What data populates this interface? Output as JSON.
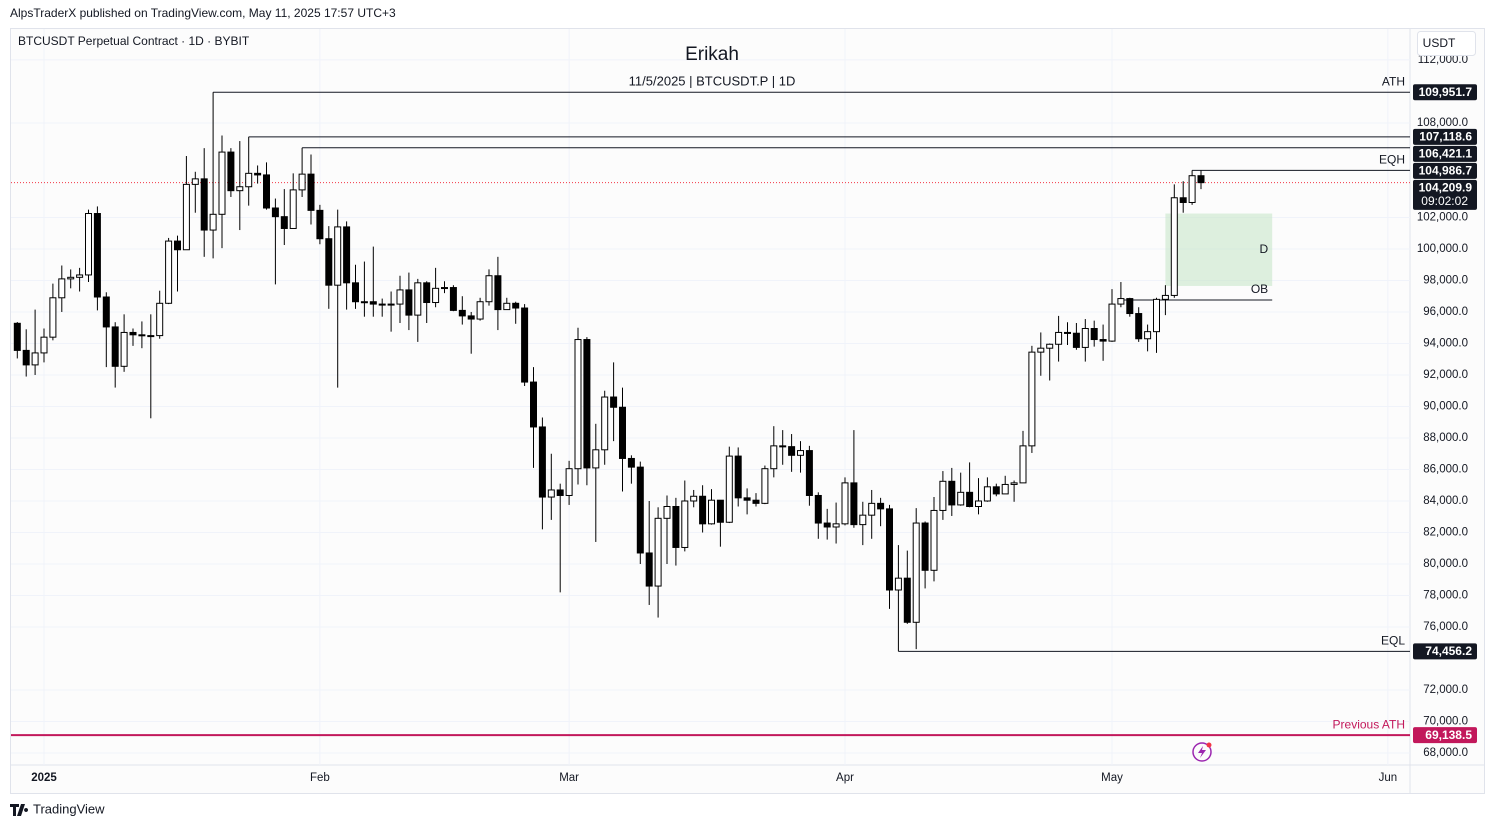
{
  "header": {
    "published": "AlpsTraderX published on TradingView.com, May 11, 2025 17:57 UTC+3",
    "symbol": "BTCUSDT Perpetual Contract · 1D · BYBIT",
    "currency": "USDT",
    "footer": "TradingView"
  },
  "chart_data": {
    "type": "candlestick",
    "title": "Erikah",
    "subtitle": "11/5/2025 | BTCUSDT.P | 1D",
    "categories": [
      null,
      null,
      null,
      "2025",
      null,
      null,
      null,
      null,
      null,
      null,
      null,
      null,
      null,
      null,
      null,
      null,
      null,
      null,
      null,
      null,
      null,
      null,
      null,
      null,
      null,
      null,
      null,
      null,
      null,
      null,
      null,
      null,
      null,
      null,
      "Feb",
      null,
      null,
      null,
      null,
      null,
      null,
      null,
      null,
      null,
      null,
      null,
      null,
      null,
      null,
      null,
      null,
      null,
      null,
      null,
      null,
      null,
      null,
      null,
      null,
      null,
      null,
      null,
      "Mar",
      null,
      null,
      null,
      null,
      null,
      null,
      null,
      null,
      null,
      null,
      null,
      null,
      null,
      null,
      null,
      null,
      null,
      null,
      null,
      null,
      null,
      null,
      null,
      null,
      null,
      null,
      null,
      null,
      null,
      null,
      "Apr",
      null,
      null,
      null,
      null,
      null,
      null,
      null,
      null,
      null,
      null,
      null,
      null,
      null,
      null,
      null,
      null,
      null,
      null,
      null,
      null,
      null,
      null,
      null,
      null,
      null,
      null,
      null,
      null,
      null,
      "May",
      null,
      null,
      null,
      null,
      null,
      null,
      null,
      null,
      null,
      null,
      null,
      null,
      null,
      null,
      null,
      null,
      null,
      null,
      null,
      null,
      null,
      null,
      null,
      null,
      null,
      null,
      null,
      null,
      null,
      null,
      "Jun",
      null
    ],
    "open": [
      95280,
      93560,
      92640,
      93400,
      94400,
      96900,
      98100,
      98200,
      98350,
      102250,
      96950,
      95050,
      92550,
      94700,
      94550,
      94500,
      94500,
      96550,
      100500,
      99950,
      104100,
      104450,
      101200,
      102200,
      106150,
      103700,
      103950,
      104800,
      104700,
      102600,
      102050,
      101300,
      103750,
      104750,
      102450,
      100650,
      97700,
      101400,
      97850,
      96650,
      96650,
      96500,
      96500,
      96500,
      97400,
      95800,
      97850,
      96600,
      97500,
      97550,
      96100,
      95750,
      95550,
      96650,
      98300,
      96150,
      96550,
      96250,
      91550,
      88700,
      84250,
      84700,
      84350,
      86050,
      94250,
      86100,
      87250,
      90600,
      89950,
      86700,
      86150,
      80700,
      78600,
      82900,
      83650,
      81050,
      84000,
      84300,
      82550,
      84050,
      82650,
      86850,
      84200,
      84050,
      83850,
      86050,
      87500,
      87450,
      86900,
      87200,
      84350,
      82600,
      82350,
      82550,
      85150,
      82500,
      83100,
      83850,
      83500,
      78350,
      79100,
      76300,
      82600,
      79600,
      83400,
      85250,
      83750,
      84550,
      83650,
      84000,
      84900,
      84450,
      85050,
      85150,
      87500,
      93450,
      93700,
      93950,
      94700,
      94650,
      93750,
      94950,
      94250,
      94150,
      96500,
      96850,
      95900,
      94300,
      94750,
      96800,
      97050,
      103250,
      102950,
      104650,
      null,
      null,
      null,
      null,
      null,
      null,
      null,
      null,
      null,
      null,
      null,
      null,
      null,
      null,
      null,
      null,
      null,
      null,
      null,
      null,
      null,
      null
    ],
    "high": [
      95360,
      94900,
      96150,
      94950,
      97800,
      98950,
      98700,
      98800,
      102500,
      102700,
      97250,
      95350,
      95850,
      94950,
      95400,
      95850,
      97350,
      100700,
      100850,
      105900,
      104900,
      106400,
      109951.7,
      107200,
      106400,
      106850,
      107118.6,
      105300,
      105500,
      103200,
      103800,
      104800,
      106421.1,
      106000,
      102800,
      101450,
      102500,
      101750,
      99000,
      99200,
      100150,
      96850,
      97300,
      98300,
      98500,
      98100,
      97950,
      98800,
      97950,
      97700,
      97000,
      96000,
      96900,
      98700,
      99500,
      96900,
      96650,
      96500,
      92500,
      89300,
      87000,
      85100,
      86550,
      95000,
      94400,
      88900,
      91000,
      92800,
      91200,
      86900,
      86500,
      84000,
      83600,
      84350,
      84200,
      85300,
      84700,
      85000,
      84750,
      84050,
      87450,
      87400,
      84800,
      84500,
      86250,
      88750,
      88500,
      88250,
      87800,
      87500,
      84550,
      83500,
      83900,
      85500,
      88500,
      83950,
      84700,
      84200,
      83750,
      81200,
      80850,
      83550,
      82700,
      84250,
      85900,
      86100,
      85800,
      86450,
      85450,
      85500,
      85100,
      85600,
      85300,
      88450,
      93850,
      94700,
      94000,
      95750,
      95350,
      95300,
      95550,
      95450,
      95200,
      97450,
      97900,
      96900,
      96300,
      95200,
      96900,
      97700,
      104100,
      104300,
      104986.7,
      104980,
      null,
      null,
      null,
      null,
      null,
      null,
      null,
      null,
      null,
      null,
      null,
      null,
      null,
      null,
      null,
      null,
      null,
      null,
      null,
      null,
      null,
      null
    ],
    "low": [
      93050,
      91900,
      92000,
      92800,
      94200,
      96000,
      97500,
      97300,
      97900,
      96100,
      92500,
      91200,
      92200,
      93850,
      93700,
      89250,
      94300,
      96500,
      97300,
      99950,
      102300,
      99500,
      99400,
      100050,
      103300,
      101200,
      102750,
      104150,
      102500,
      97750,
      100250,
      101300,
      103300,
      101550,
      100300,
      96200,
      91200,
      96150,
      96200,
      95700,
      95700,
      95700,
      94750,
      95300,
      94850,
      94100,
      95300,
      96300,
      97200,
      96050,
      95200,
      93350,
      95450,
      96400,
      94850,
      96150,
      95250,
      91300,
      86100,
      82200,
      82800,
      78200,
      83750,
      85050,
      85000,
      81400,
      86300,
      87800,
      84600,
      85100,
      80000,
      77400,
      76600,
      80000,
      79900,
      80800,
      83600,
      82000,
      82500,
      81100,
      82600,
      83650,
      83150,
      83650,
      83800,
      85500,
      86300,
      85850,
      85800,
      83700,
      81600,
      81550,
      81300,
      82450,
      82300,
      81200,
      81600,
      82400,
      77150,
      74456.2,
      76200,
      74600,
      78450,
      78900,
      82800,
      83050,
      83700,
      83600,
      83150,
      83950,
      84300,
      84450,
      83950,
      85150,
      87050,
      91950,
      91650,
      92850,
      93900,
      93600,
      92850,
      93800,
      92900,
      94100,
      96300,
      95700,
      94100,
      93500,
      93400,
      95800,
      96900,
      102300,
      102800,
      103800,
      null,
      null,
      null,
      null,
      null,
      null,
      null,
      null,
      null,
      null,
      null,
      null,
      null,
      null,
      null,
      null,
      null,
      null,
      null,
      null,
      null,
      null
    ],
    "close": [
      93560,
      92640,
      93400,
      94400,
      96900,
      98100,
      98200,
      98350,
      102250,
      96950,
      95050,
      92550,
      94700,
      94550,
      94500,
      94500,
      96550,
      100500,
      99950,
      104100,
      104450,
      101200,
      102200,
      106150,
      103700,
      103950,
      104800,
      104700,
      102600,
      102050,
      101300,
      103750,
      104750,
      102450,
      100650,
      97700,
      101400,
      97850,
      96650,
      96650,
      96500,
      96500,
      96500,
      97400,
      95800,
      97850,
      96600,
      97500,
      97550,
      96100,
      95750,
      95550,
      96650,
      98300,
      96150,
      96550,
      96250,
      91550,
      88700,
      84250,
      84700,
      84350,
      86050,
      94250,
      86100,
      87250,
      90600,
      89950,
      86700,
      86150,
      80700,
      78600,
      82900,
      83650,
      81050,
      84000,
      84300,
      82550,
      84050,
      82650,
      86850,
      84200,
      84050,
      83850,
      86050,
      87500,
      87450,
      86900,
      87200,
      84350,
      82600,
      82350,
      82550,
      85150,
      82500,
      83100,
      83850,
      83500,
      78350,
      79100,
      76300,
      82600,
      79600,
      83400,
      85250,
      83750,
      84550,
      83650,
      84000,
      84900,
      84450,
      85050,
      85150,
      87500,
      93450,
      93700,
      93950,
      94700,
      94650,
      93750,
      94950,
      94250,
      94150,
      96500,
      96850,
      95900,
      94300,
      94750,
      96800,
      97050,
      103250,
      102950,
      104650,
      104209.9,
      null,
      null,
      null,
      null,
      null,
      null,
      null,
      null,
      null,
      null,
      null,
      null,
      null,
      null,
      null,
      null,
      null,
      null,
      null,
      null,
      null,
      null
    ],
    "ylim": [
      67240,
      113900
    ],
    "yticks": [
      {
        "value": 68000,
        "label": "68,000.0"
      },
      {
        "value": 70000,
        "label": "70,000.0"
      },
      {
        "value": 72000,
        "label": "72,000.0"
      },
      {
        "value": 76000,
        "label": "76,000.0"
      },
      {
        "value": 78000,
        "label": "78,000.0"
      },
      {
        "value": 80000,
        "label": "80,000.0"
      },
      {
        "value": 82000,
        "label": "82,000.0"
      },
      {
        "value": 84000,
        "label": "84,000.0"
      },
      {
        "value": 86000,
        "label": "86,000.0"
      },
      {
        "value": 88000,
        "label": "88,000.0"
      },
      {
        "value": 90000,
        "label": "90,000.0"
      },
      {
        "value": 92000,
        "label": "92,000.0"
      },
      {
        "value": 94000,
        "label": "94,000.0"
      },
      {
        "value": 96000,
        "label": "96,000.0"
      },
      {
        "value": 98000,
        "label": "98,000.0"
      },
      {
        "value": 100000,
        "label": "100,000.0"
      },
      {
        "value": 102000,
        "label": "102,000.0"
      },
      {
        "value": 108000,
        "label": "108,000.0"
      },
      {
        "value": 112000,
        "label": "112,000.0"
      }
    ],
    "grid": true,
    "levels": [
      {
        "label": "ATH",
        "value": 109951.7,
        "price_label": "109,951.7"
      },
      {
        "value": 107118.6,
        "price_label": "107,118.6"
      },
      {
        "value": 106421.1,
        "price_label": "106,421.1"
      },
      {
        "label": "EQH",
        "value": 104986.7,
        "price_label": "104,986.7"
      },
      {
        "label": "EQL",
        "value": 74456.2,
        "price_label": "74,456.2"
      },
      {
        "label": "Previous ATH",
        "value": 69138.5,
        "price_label": "69,138.5",
        "color": "#c2185b"
      }
    ],
    "last_price": {
      "value": 104209.9,
      "label": "104,209.9",
      "countdown": "09:02:02"
    },
    "zone": {
      "label": "D",
      "top": 102250,
      "bottom": 97650,
      "x": [
        129,
        141
      ]
    },
    "ob": {
      "label": "OB",
      "value": 96760,
      "x": [
        124,
        141
      ]
    }
  }
}
